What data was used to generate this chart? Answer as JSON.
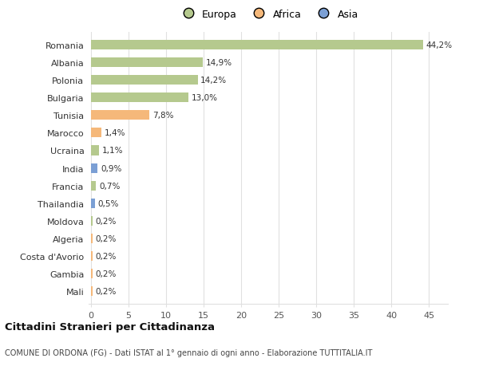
{
  "countries": [
    "Romania",
    "Albania",
    "Polonia",
    "Bulgaria",
    "Tunisia",
    "Marocco",
    "Ucraina",
    "India",
    "Francia",
    "Thailandia",
    "Moldova",
    "Algeria",
    "Costa d'Avorio",
    "Gambia",
    "Mali"
  ],
  "values": [
    44.2,
    14.9,
    14.2,
    13.0,
    7.8,
    1.4,
    1.1,
    0.9,
    0.7,
    0.5,
    0.2,
    0.2,
    0.2,
    0.2,
    0.2
  ],
  "labels": [
    "44,2%",
    "14,9%",
    "14,2%",
    "13,0%",
    "7,8%",
    "1,4%",
    "1,1%",
    "0,9%",
    "0,7%",
    "0,5%",
    "0,2%",
    "0,2%",
    "0,2%",
    "0,2%",
    "0,2%"
  ],
  "continents": [
    "Europa",
    "Europa",
    "Europa",
    "Europa",
    "Africa",
    "Africa",
    "Europa",
    "Asia",
    "Europa",
    "Asia",
    "Europa",
    "Africa",
    "Africa",
    "Africa",
    "Africa"
  ],
  "colors": {
    "Europa": "#b5c98e",
    "Africa": "#f5b87a",
    "Asia": "#7b9fd4"
  },
  "title": "Cittadini Stranieri per Cittadinanza",
  "subtitle": "COMUNE DI ORDONA (FG) - Dati ISTAT al 1° gennaio di ogni anno - Elaborazione TUTTITALIA.IT",
  "xlabel_ticks": [
    0,
    5,
    10,
    15,
    20,
    25,
    30,
    35,
    40,
    45
  ],
  "xlim": [
    -0.3,
    47.5
  ],
  "background_color": "#ffffff",
  "grid_color": "#e0e0e0"
}
